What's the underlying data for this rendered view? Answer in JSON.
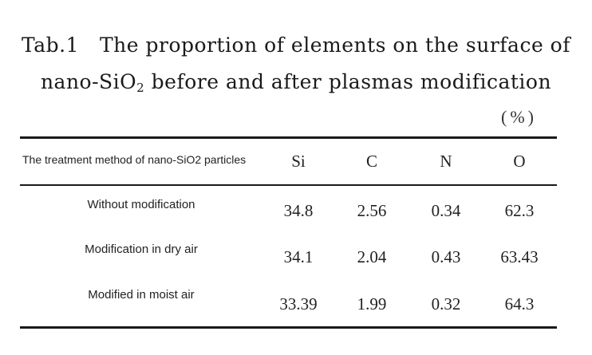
{
  "caption": {
    "label": "Tab.1",
    "line1_text": "The proportion of elements on the surface of",
    "line2_prefix": "nano-SiO",
    "line2_subscript": "2",
    "line2_suffix": " before and after plasmas modification"
  },
  "unit": "(%)",
  "table": {
    "columns": [
      "The treatment method of nano-SiO2 particles",
      "Si",
      "C",
      "N",
      "O"
    ],
    "rows": [
      {
        "method": "Without modification",
        "values": [
          "34.8",
          "2.56",
          "0.34",
          "62.3"
        ]
      },
      {
        "method": "Modification in dry air",
        "values": [
          "34.1",
          "2.04",
          "0.43",
          "63.43"
        ]
      },
      {
        "method": "Modified in moist air",
        "values": [
          "33.39",
          "1.99",
          "0.32",
          "64.3"
        ]
      }
    ]
  }
}
